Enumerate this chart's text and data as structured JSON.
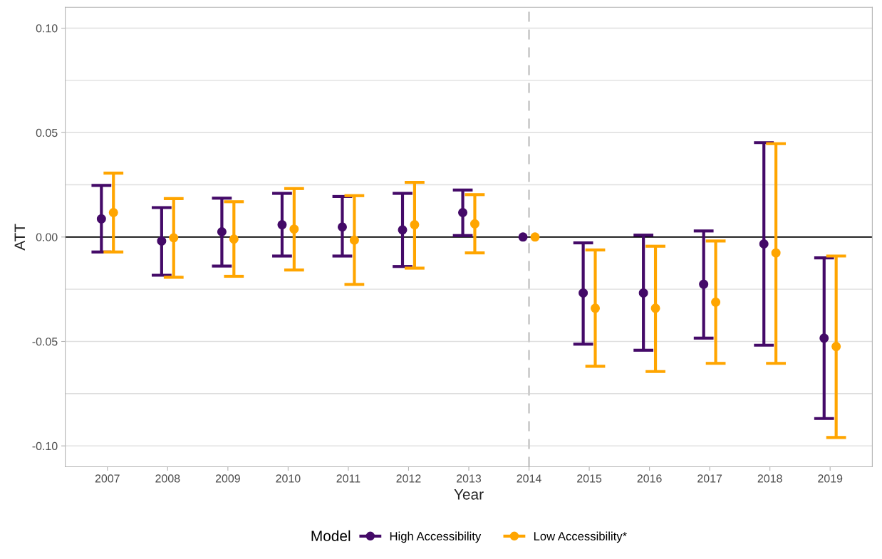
{
  "chart_data": {
    "type": "scatter",
    "xlabel": "Year",
    "ylabel": "ATT",
    "legend_title": "Model",
    "legend": "bottom",
    "grid": "y",
    "marker": "circle",
    "categories": [
      "2007",
      "2008",
      "2009",
      "2010",
      "2011",
      "2012",
      "2013",
      "2014",
      "2015",
      "2016",
      "2017",
      "2018",
      "2019"
    ],
    "series": [
      {
        "name": "High Accessibility",
        "color": "#440a68",
        "values": [
          0.0087,
          -0.0019,
          0.0025,
          0.0059,
          0.0048,
          0.0034,
          0.0117,
          0,
          -0.0268,
          -0.0268,
          -0.0226,
          -0.0033,
          -0.0484
        ],
        "errors": [
          [
            -0.0072,
            0.0247
          ],
          [
            -0.0183,
            0.0141
          ],
          [
            -0.0139,
            0.0186
          ],
          [
            -0.0091,
            0.0209
          ],
          [
            -0.0091,
            0.0194
          ],
          [
            -0.0141,
            0.0209
          ],
          [
            0.0007,
            0.0225
          ],
          null,
          [
            -0.0513,
            -0.0028
          ],
          [
            -0.0542,
            0.0009
          ],
          [
            -0.0484,
            0.0029
          ],
          [
            -0.0518,
            0.0452
          ],
          [
            -0.0869,
            -0.01
          ]
        ]
      },
      {
        "name": "Low Accessibility*",
        "color": "#ffa500",
        "values": [
          0.0117,
          -0.0004,
          -0.001,
          0.0038,
          -0.0015,
          0.0059,
          0.0063,
          0,
          -0.0341,
          -0.0341,
          -0.0312,
          -0.0076,
          -0.0524
        ],
        "errors": [
          [
            -0.0072,
            0.0306
          ],
          [
            -0.0193,
            0.0184
          ],
          [
            -0.0188,
            0.0169
          ],
          [
            -0.0158,
            0.0232
          ],
          [
            -0.0227,
            0.0198
          ],
          [
            -0.0149,
            0.0262
          ],
          [
            -0.0076,
            0.0203
          ],
          null,
          [
            -0.0619,
            -0.0062
          ],
          [
            -0.0644,
            -0.0044
          ],
          [
            -0.0605,
            -0.0019
          ],
          [
            -0.0605,
            0.0447
          ],
          [
            -0.096,
            -0.0091
          ]
        ]
      }
    ],
    "ylim": [
      -0.11,
      0.11
    ],
    "yticks": [
      {
        "value": -0.1,
        "label": "-0.10"
      },
      {
        "value": -0.05,
        "label": "-0.05"
      },
      {
        "value": 0,
        "label": "0.00"
      },
      {
        "value": 0.05,
        "label": "0.05"
      },
      {
        "value": 0.1,
        "label": "0.10"
      }
    ],
    "ref_lines": [
      {
        "axis": "y",
        "value": 0,
        "color": "#000000",
        "line_style": "solid"
      },
      {
        "axis": "x",
        "value": "2014",
        "color": "#cccccc",
        "line_style": "dashed"
      }
    ]
  }
}
